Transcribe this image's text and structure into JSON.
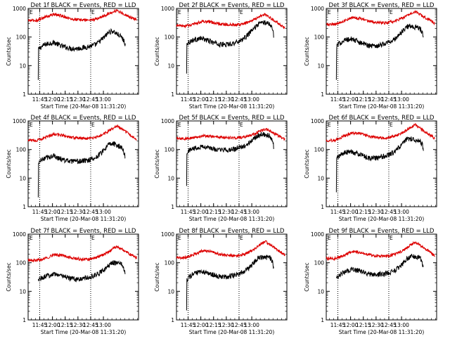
{
  "colors": {
    "events": "#000000",
    "lld": "#dd0000",
    "marker": "#000000"
  },
  "chart_data": [
    {
      "type": "line",
      "title": "Det 1f BLACK = Events, RED = LLD",
      "xlabel": "Start Time (20-Mar-08 11:31:20)",
      "ylabel": "Counts/sec",
      "x_tick_labels": [
        "11:45",
        "12:00",
        "12:15",
        "12:30",
        "12:45",
        "13:00"
      ],
      "y_tick_labels": [
        "1",
        "10",
        "100",
        "1000"
      ],
      "ylim": [
        1,
        1000
      ],
      "yscale": "log",
      "vlines": [
        "11:45",
        "12:45"
      ],
      "corner_markers": [
        "E",
        "E"
      ],
      "series": [
        {
          "name": "Events",
          "x_minutes": [
            11.9,
            12.0,
            13,
            20,
            30,
            40,
            50,
            60,
            70,
            80,
            90,
            95,
            100,
            110,
            113,
            114,
            114.5
          ],
          "values": [
            3,
            35,
            40,
            55,
            65,
            48,
            40,
            40,
            45,
            55,
            100,
            150,
            160,
            100,
            70,
            60,
            55
          ]
        },
        {
          "name": "LLD",
          "x_minutes": [
            0,
            10,
            20,
            30,
            40,
            50,
            60,
            70,
            80,
            90,
            100,
            105,
            110,
            120,
            128
          ],
          "values": [
            380,
            380,
            500,
            620,
            550,
            430,
            400,
            390,
            420,
            560,
            780,
            850,
            700,
            500,
            390
          ]
        }
      ]
    },
    {
      "type": "line",
      "title": "Det 2f BLACK = Events, RED = LLD",
      "xlabel": "Start Time (20-Mar-08 11:31:20)",
      "ylabel": "Counts/sec",
      "x_tick_labels": [
        "11:45",
        "12:00",
        "12:15",
        "12:30",
        "12:45",
        "13:00"
      ],
      "y_tick_labels": [
        "1",
        "10",
        "100",
        "1000"
      ],
      "ylim": [
        1,
        1000
      ],
      "yscale": "log",
      "vlines": [
        "11:45",
        "12:45"
      ],
      "corner_markers": [
        "E",
        "E"
      ],
      "series": [
        {
          "name": "Events",
          "x_minutes": [
            11.9,
            12.0,
            14,
            20,
            30,
            40,
            50,
            60,
            70,
            80,
            90,
            95,
            100,
            110,
            113,
            114,
            114.5
          ],
          "values": [
            5,
            60,
            65,
            80,
            90,
            70,
            55,
            55,
            65,
            90,
            180,
            260,
            330,
            300,
            200,
            140,
            100
          ]
        },
        {
          "name": "LLD",
          "x_minutes": [
            0,
            10,
            20,
            30,
            40,
            50,
            60,
            70,
            80,
            90,
            100,
            105,
            110,
            120,
            128
          ],
          "values": [
            250,
            240,
            280,
            350,
            330,
            290,
            270,
            260,
            300,
            400,
            550,
            620,
            480,
            300,
            200
          ]
        }
      ]
    },
    {
      "type": "line",
      "title": "Det 3f BLACK = Events, RED = LLD",
      "xlabel": "Start Time (20-Mar-08 11:31:20)",
      "ylabel": "Counts/sec",
      "x_tick_labels": [
        "11:45",
        "12:00",
        "12:15",
        "12:30",
        "12:45",
        "13:00"
      ],
      "y_tick_labels": [
        "1",
        "10",
        "100",
        "1000"
      ],
      "ylim": [
        1,
        1000
      ],
      "yscale": "log",
      "vlines": [
        "11:45",
        "12:45"
      ],
      "corner_markers": [
        "E",
        "E"
      ],
      "series": [
        {
          "name": "Events",
          "x_minutes": [
            11.9,
            12.0,
            14,
            20,
            30,
            40,
            50,
            60,
            70,
            80,
            90,
            95,
            100,
            110,
            113,
            114,
            114.5
          ],
          "values": [
            3,
            45,
            55,
            75,
            85,
            65,
            50,
            50,
            60,
            80,
            160,
            230,
            240,
            200,
            150,
            110,
            80
          ]
        },
        {
          "name": "LLD",
          "x_minutes": [
            0,
            10,
            20,
            30,
            40,
            50,
            60,
            70,
            80,
            90,
            100,
            105,
            110,
            120,
            128
          ],
          "values": [
            280,
            280,
            360,
            480,
            450,
            360,
            320,
            310,
            350,
            470,
            700,
            800,
            620,
            420,
            300
          ]
        }
      ]
    },
    {
      "type": "line",
      "title": "Det 4f BLACK = Events, RED = LLD",
      "xlabel": "Start Time (20-Mar-08 11:31:20)",
      "ylabel": "Counts/sec",
      "x_tick_labels": [
        "11:45",
        "12:00",
        "12:15",
        "12:30",
        "12:45",
        "13:00"
      ],
      "y_tick_labels": [
        "1",
        "10",
        "100",
        "1000"
      ],
      "ylim": [
        1,
        1000
      ],
      "yscale": "log",
      "vlines": [
        "11:45",
        "12:45"
      ],
      "corner_markers": [
        "E",
        "E"
      ],
      "series": [
        {
          "name": "Events",
          "x_minutes": [
            11.9,
            12.0,
            14,
            20,
            30,
            40,
            50,
            60,
            70,
            80,
            90,
            95,
            100,
            110,
            113,
            114,
            114.5
          ],
          "values": [
            2,
            30,
            40,
            50,
            60,
            45,
            38,
            38,
            42,
            52,
            100,
            150,
            160,
            120,
            80,
            60,
            50
          ]
        },
        {
          "name": "LLD",
          "x_minutes": [
            0,
            10,
            20,
            30,
            40,
            50,
            60,
            70,
            80,
            90,
            100,
            105,
            110,
            120,
            128
          ],
          "values": [
            210,
            210,
            260,
            340,
            320,
            270,
            250,
            240,
            270,
            360,
            560,
            650,
            520,
            330,
            220
          ]
        }
      ]
    },
    {
      "type": "line",
      "title": "Det 5f BLACK = Events, RED = LLD",
      "xlabel": "Start Time (20-Mar-08 11:31:20)",
      "ylabel": "Counts/sec",
      "x_tick_labels": [
        "11:45",
        "12:00",
        "12:15",
        "12:30",
        "12:45",
        "13:00"
      ],
      "y_tick_labels": [
        "1",
        "10",
        "100",
        "1000"
      ],
      "ylim": [
        1,
        1000
      ],
      "yscale": "log",
      "vlines": [
        "11:45",
        "12:45"
      ],
      "corner_markers": [
        "E",
        "E"
      ],
      "series": [
        {
          "name": "Events",
          "x_minutes": [
            11.9,
            12.0,
            14,
            20,
            30,
            40,
            50,
            60,
            70,
            80,
            90,
            95,
            100,
            110,
            113,
            114,
            114.5
          ],
          "values": [
            5,
            80,
            90,
            110,
            130,
            110,
            95,
            95,
            105,
            130,
            220,
            300,
            350,
            300,
            200,
            150,
            120
          ]
        },
        {
          "name": "LLD",
          "x_minutes": [
            0,
            10,
            20,
            30,
            40,
            50,
            60,
            70,
            80,
            90,
            100,
            105,
            110,
            120,
            128
          ],
          "values": [
            240,
            240,
            260,
            300,
            290,
            270,
            260,
            255,
            270,
            330,
            460,
            520,
            440,
            300,
            220
          ]
        }
      ]
    },
    {
      "type": "line",
      "title": "Det 6f BLACK = Events, RED = LLD",
      "xlabel": "Start Time (20-Mar-08 11:31:20)",
      "ylabel": "Counts/sec",
      "x_tick_labels": [
        "11:45",
        "12:00",
        "12:15",
        "12:30",
        "12:45",
        "13:00"
      ],
      "y_tick_labels": [
        "1",
        "10",
        "100",
        "1000"
      ],
      "ylim": [
        1,
        1000
      ],
      "yscale": "log",
      "vlines": [
        "11:45",
        "12:45"
      ],
      "corner_markers": [
        "E",
        "E"
      ],
      "series": [
        {
          "name": "Events",
          "x_minutes": [
            11.9,
            12.0,
            14,
            20,
            30,
            40,
            50,
            60,
            70,
            80,
            90,
            95,
            100,
            110,
            113,
            114,
            114.5
          ],
          "values": [
            3,
            45,
            55,
            75,
            85,
            65,
            50,
            50,
            60,
            80,
            160,
            230,
            240,
            200,
            150,
            110,
            80
          ]
        },
        {
          "name": "LLD",
          "x_minutes": [
            0,
            10,
            20,
            30,
            40,
            50,
            60,
            70,
            80,
            90,
            100,
            105,
            110,
            120,
            128
          ],
          "values": [
            210,
            210,
            280,
            380,
            360,
            290,
            260,
            250,
            290,
            390,
            620,
            720,
            560,
            360,
            240
          ]
        }
      ]
    },
    {
      "type": "line",
      "title": "Det 7f BLACK = Events, RED = LLD",
      "xlabel": "Start Time (20-Mar-08 11:31:20)",
      "ylabel": "Counts/sec",
      "x_tick_labels": [
        "11:45",
        "12:00",
        "12:15",
        "12:30",
        "12:45",
        "13:00"
      ],
      "y_tick_labels": [
        "1",
        "10",
        "100",
        "1000"
      ],
      "ylim": [
        1,
        1000
      ],
      "yscale": "log",
      "vlines": [
        "11:45",
        "12:45"
      ],
      "corner_markers": [
        "E",
        "E"
      ],
      "series": [
        {
          "name": "Events",
          "x_minutes": [
            12.0,
            14,
            20,
            30,
            40,
            50,
            60,
            70,
            80,
            90,
            95,
            100,
            110,
            113,
            114,
            114.5
          ],
          "values": [
            25,
            28,
            32,
            42,
            35,
            28,
            26,
            30,
            38,
            55,
            80,
            100,
            90,
            60,
            45,
            40
          ]
        },
        {
          "name": "LLD",
          "x_minutes": [
            0,
            10,
            20,
            30,
            40,
            50,
            60,
            70,
            80,
            90,
            100,
            105,
            110,
            120,
            128
          ],
          "values": [
            120,
            120,
            140,
            190,
            180,
            150,
            135,
            130,
            150,
            200,
            310,
            370,
            300,
            200,
            150
          ]
        }
      ]
    },
    {
      "type": "line",
      "title": "Det 8f BLACK = Events, RED = LLD",
      "xlabel": "Start Time (20-Mar-08 11:31:20)",
      "ylabel": "Counts/sec",
      "x_tick_labels": [
        "11:45",
        "12:00",
        "12:15",
        "12:30",
        "12:45",
        "13:00"
      ],
      "y_tick_labels": [
        "1",
        "10",
        "100",
        "1000"
      ],
      "ylim": [
        1,
        1000
      ],
      "yscale": "log",
      "vlines": [
        "11:45",
        "12:45"
      ],
      "corner_markers": [
        "E",
        "E"
      ],
      "series": [
        {
          "name": "Events",
          "x_minutes": [
            11.9,
            12.0,
            14,
            20,
            30,
            40,
            50,
            60,
            70,
            80,
            90,
            95,
            100,
            110,
            113,
            114,
            114.5
          ],
          "values": [
            2,
            25,
            30,
            40,
            50,
            40,
            33,
            33,
            38,
            48,
            90,
            140,
            160,
            150,
            110,
            80,
            60
          ]
        },
        {
          "name": "LLD",
          "x_minutes": [
            0,
            10,
            20,
            30,
            40,
            50,
            60,
            70,
            80,
            90,
            100,
            105,
            110,
            120,
            128
          ],
          "values": [
            150,
            150,
            190,
            260,
            250,
            200,
            180,
            175,
            200,
            280,
            470,
            540,
            430,
            270,
            180
          ]
        }
      ]
    },
    {
      "type": "line",
      "title": "Det 9f BLACK = Events, RED = LLD",
      "xlabel": "Start Time (20-Mar-08 11:31:20)",
      "ylabel": "Counts/sec",
      "x_tick_labels": [
        "11:45",
        "12:00",
        "12:15",
        "12:30",
        "12:45",
        "13:00"
      ],
      "y_tick_labels": [
        "1",
        "10",
        "100",
        "1000"
      ],
      "ylim": [
        1,
        1000
      ],
      "yscale": "log",
      "vlines": [
        "11:45",
        "12:45"
      ],
      "corner_markers": [
        "E",
        "E"
      ],
      "series": [
        {
          "name": "Events",
          "x_minutes": [
            12.0,
            14,
            20,
            30,
            40,
            50,
            60,
            70,
            80,
            90,
            95,
            100,
            110,
            113,
            114,
            114.5
          ],
          "values": [
            30,
            34,
            45,
            60,
            50,
            40,
            38,
            42,
            52,
            90,
            140,
            170,
            150,
            100,
            70,
            55
          ]
        },
        {
          "name": "LLD",
          "x_minutes": [
            0,
            10,
            20,
            30,
            40,
            50,
            60,
            70,
            80,
            90,
            100,
            105,
            110,
            120,
            128
          ],
          "values": [
            140,
            140,
            170,
            240,
            230,
            190,
            170,
            165,
            190,
            260,
            430,
            520,
            420,
            260,
            170
          ]
        }
      ]
    }
  ]
}
